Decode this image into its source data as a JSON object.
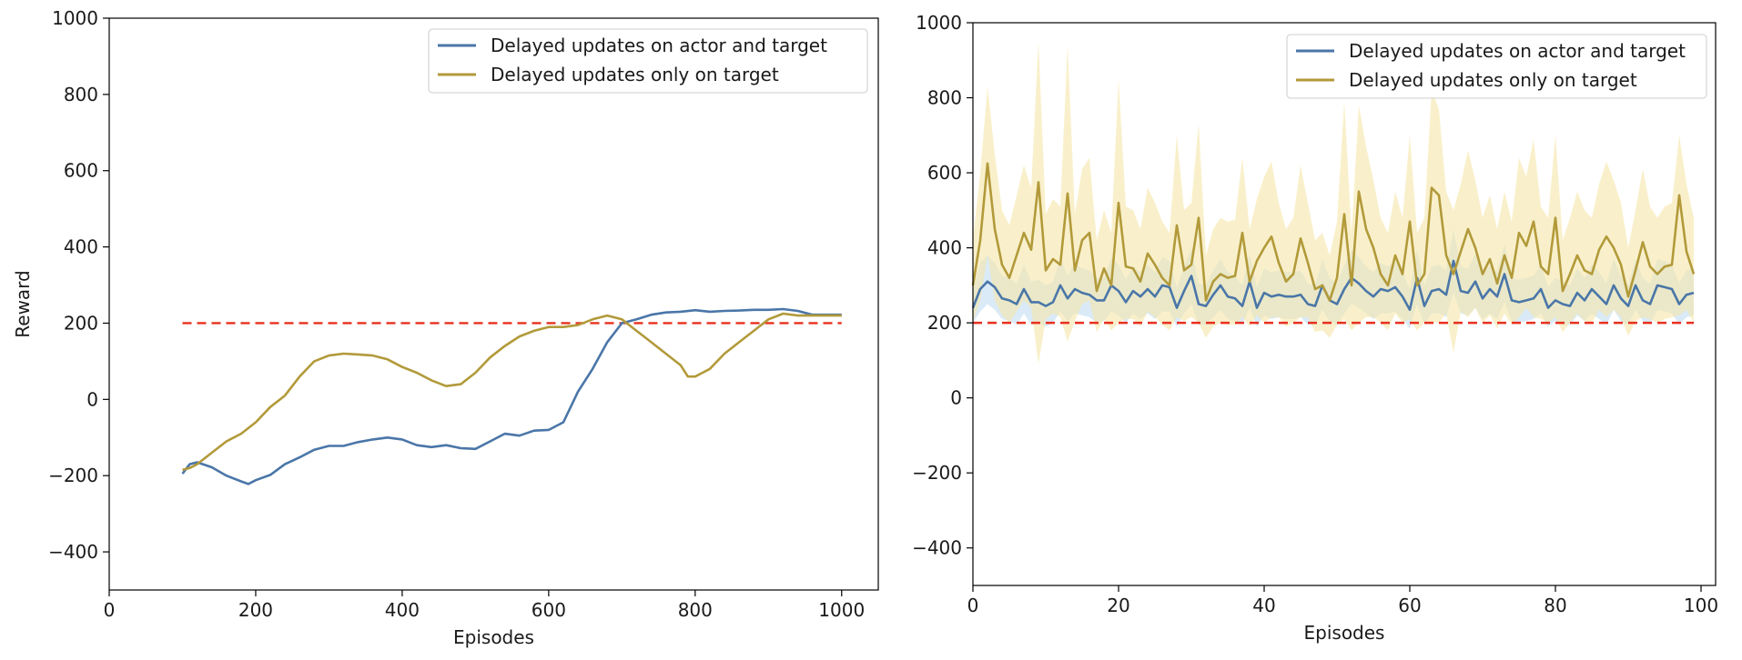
{
  "chart_data": [
    {
      "type": "line",
      "title": "",
      "xlabel": "Episodes",
      "ylabel": "Reward",
      "xlim": [
        0,
        1050
      ],
      "ylim": [
        -500,
        1000
      ],
      "xticks": [
        "0",
        "200",
        "400",
        "600",
        "800",
        "1000"
      ],
      "yticks": [
        "−400",
        "−200",
        "0",
        "200",
        "400",
        "600",
        "800",
        "1000"
      ],
      "legend_position": "top-right",
      "threshold": 200,
      "grid": false,
      "series": [
        {
          "name": "Delayed updates on actor and target",
          "color": "#4a76a8",
          "x": [
            100,
            110,
            120,
            140,
            160,
            180,
            190,
            200,
            220,
            240,
            260,
            280,
            300,
            320,
            340,
            360,
            380,
            400,
            420,
            440,
            460,
            480,
            500,
            520,
            540,
            560,
            580,
            600,
            620,
            640,
            660,
            680,
            700,
            720,
            740,
            760,
            780,
            800,
            820,
            840,
            860,
            880,
            900,
            920,
            940,
            960,
            980,
            1000
          ],
          "y": [
            -195,
            -170,
            -165,
            -178,
            -200,
            -215,
            -222,
            -212,
            -198,
            -170,
            -152,
            -132,
            -122,
            -122,
            -112,
            -105,
            -100,
            -105,
            -120,
            -125,
            -120,
            -128,
            -130,
            -110,
            -90,
            -95,
            -82,
            -80,
            -60,
            20,
            80,
            150,
            200,
            210,
            222,
            228,
            230,
            234,
            230,
            232,
            233,
            235,
            235,
            237,
            232,
            222,
            222,
            222
          ]
        },
        {
          "name": "Delayed updates only on target",
          "color": "#b29a3a",
          "x": [
            100,
            110,
            120,
            140,
            160,
            180,
            200,
            220,
            240,
            260,
            280,
            300,
            320,
            340,
            360,
            380,
            400,
            420,
            440,
            460,
            480,
            500,
            520,
            540,
            560,
            580,
            600,
            620,
            640,
            660,
            680,
            700,
            720,
            740,
            760,
            780,
            790,
            800,
            810,
            820,
            840,
            860,
            880,
            900,
            920,
            940,
            960,
            980,
            1000
          ],
          "y": [
            -185,
            -180,
            -170,
            -140,
            -110,
            -90,
            -60,
            -20,
            10,
            60,
            100,
            115,
            120,
            118,
            115,
            105,
            85,
            70,
            50,
            35,
            40,
            70,
            110,
            140,
            165,
            180,
            190,
            190,
            195,
            210,
            220,
            210,
            180,
            150,
            120,
            90,
            60,
            60,
            70,
            80,
            120,
            150,
            180,
            210,
            225,
            220,
            220,
            220,
            220
          ]
        }
      ]
    },
    {
      "type": "line",
      "title": "",
      "xlabel": "Episodes",
      "ylabel": "",
      "xlim": [
        0,
        102
      ],
      "ylim": [
        -500,
        1000
      ],
      "xticks": [
        "0",
        "20",
        "40",
        "60",
        "80",
        "100"
      ],
      "yticks": [
        "−400",
        "−200",
        "0",
        "200",
        "400",
        "600",
        "800",
        "1000"
      ],
      "legend_position": "top-right",
      "threshold": 200,
      "grid": false,
      "series": [
        {
          "name": "Delayed updates on actor and target",
          "color": "#4a76a8",
          "band_color": "#bcd8f0",
          "x": [
            0,
            1,
            2,
            3,
            4,
            5,
            6,
            7,
            8,
            9,
            10,
            11,
            12,
            13,
            14,
            15,
            16,
            17,
            18,
            19,
            20,
            21,
            22,
            23,
            24,
            25,
            26,
            27,
            28,
            29,
            30,
            31,
            32,
            33,
            34,
            35,
            36,
            37,
            38,
            39,
            40,
            41,
            42,
            43,
            44,
            45,
            46,
            47,
            48,
            49,
            50,
            51,
            52,
            53,
            54,
            55,
            56,
            57,
            58,
            59,
            60,
            61,
            62,
            63,
            64,
            65,
            66,
            67,
            68,
            69,
            70,
            71,
            72,
            73,
            74,
            75,
            76,
            77,
            78,
            79,
            80,
            81,
            82,
            83,
            84,
            85,
            86,
            87,
            88,
            89,
            90,
            91,
            92,
            93,
            94,
            95,
            96,
            97,
            98,
            99
          ],
          "y": [
            240,
            290,
            310,
            295,
            265,
            260,
            250,
            290,
            255,
            255,
            245,
            255,
            300,
            265,
            290,
            280,
            275,
            260,
            260,
            300,
            285,
            255,
            285,
            270,
            290,
            270,
            300,
            295,
            240,
            285,
            325,
            250,
            245,
            275,
            300,
            270,
            265,
            245,
            310,
            240,
            280,
            270,
            275,
            270,
            270,
            275,
            250,
            245,
            300,
            260,
            250,
            290,
            320,
            305,
            285,
            270,
            290,
            285,
            295,
            270,
            235,
            320,
            245,
            285,
            290,
            275,
            365,
            285,
            280,
            310,
            265,
            290,
            270,
            330,
            260,
            255,
            260,
            265,
            290,
            240,
            260,
            250,
            245,
            280,
            260,
            290,
            270,
            250,
            300,
            265,
            245,
            300,
            260,
            250,
            300,
            295,
            290,
            250,
            275,
            280
          ],
          "y_low": [
            200,
            230,
            250,
            235,
            210,
            205,
            195,
            225,
            195,
            200,
            190,
            200,
            230,
            205,
            225,
            220,
            215,
            200,
            205,
            230,
            220,
            200,
            225,
            210,
            225,
            210,
            230,
            230,
            190,
            225,
            250,
            195,
            195,
            215,
            235,
            210,
            205,
            195,
            240,
            190,
            220,
            210,
            215,
            210,
            210,
            215,
            195,
            195,
            235,
            205,
            195,
            225,
            250,
            240,
            225,
            210,
            225,
            225,
            230,
            210,
            185,
            250,
            195,
            225,
            225,
            215,
            280,
            225,
            220,
            240,
            210,
            225,
            210,
            255,
            205,
            200,
            205,
            210,
            225,
            190,
            205,
            195,
            195,
            220,
            205,
            225,
            210,
            195,
            235,
            205,
            195,
            235,
            205,
            195,
            235,
            230,
            225,
            195,
            215,
            220
          ],
          "y_high": [
            290,
            360,
            380,
            360,
            325,
            320,
            305,
            355,
            310,
            315,
            300,
            310,
            375,
            325,
            360,
            345,
            340,
            320,
            320,
            375,
            355,
            315,
            350,
            335,
            355,
            335,
            375,
            365,
            295,
            350,
            400,
            305,
            300,
            340,
            370,
            335,
            325,
            300,
            385,
            295,
            345,
            335,
            340,
            335,
            335,
            340,
            305,
            300,
            370,
            320,
            305,
            355,
            395,
            375,
            350,
            335,
            360,
            350,
            365,
            335,
            290,
            395,
            300,
            350,
            355,
            340,
            450,
            350,
            345,
            385,
            325,
            355,
            335,
            410,
            320,
            315,
            320,
            325,
            355,
            295,
            320,
            310,
            300,
            345,
            320,
            355,
            335,
            305,
            370,
            325,
            300,
            370,
            320,
            305,
            370,
            365,
            355,
            305,
            340,
            345
          ]
        },
        {
          "name": "Delayed updates only on target",
          "color": "#b29a3a",
          "band_color": "#f5e6a8",
          "x": [
            0,
            1,
            2,
            3,
            4,
            5,
            6,
            7,
            8,
            9,
            10,
            11,
            12,
            13,
            14,
            15,
            16,
            17,
            18,
            19,
            20,
            21,
            22,
            23,
            24,
            25,
            26,
            27,
            28,
            29,
            30,
            31,
            32,
            33,
            34,
            35,
            36,
            37,
            38,
            39,
            40,
            41,
            42,
            43,
            44,
            45,
            46,
            47,
            48,
            49,
            50,
            51,
            52,
            53,
            54,
            55,
            56,
            57,
            58,
            59,
            60,
            61,
            62,
            63,
            64,
            65,
            66,
            67,
            68,
            69,
            70,
            71,
            72,
            73,
            74,
            75,
            76,
            77,
            78,
            79,
            80,
            81,
            82,
            83,
            84,
            85,
            86,
            87,
            88,
            89,
            90,
            91,
            92,
            93,
            94,
            95,
            96,
            97,
            98,
            99
          ],
          "y": [
            300,
            420,
            625,
            450,
            355,
            320,
            380,
            440,
            395,
            575,
            340,
            370,
            355,
            545,
            340,
            420,
            440,
            285,
            345,
            300,
            520,
            350,
            345,
            310,
            385,
            355,
            320,
            300,
            460,
            340,
            355,
            480,
            260,
            310,
            330,
            320,
            325,
            440,
            310,
            365,
            400,
            430,
            360,
            310,
            330,
            425,
            360,
            290,
            300,
            260,
            320,
            490,
            300,
            550,
            450,
            400,
            330,
            300,
            380,
            330,
            470,
            300,
            330,
            560,
            540,
            380,
            330,
            390,
            450,
            400,
            330,
            370,
            305,
            380,
            320,
            440,
            405,
            470,
            350,
            330,
            480,
            285,
            330,
            380,
            340,
            330,
            395,
            430,
            400,
            355,
            270,
            340,
            415,
            350,
            330,
            350,
            355,
            540,
            390,
            330
          ],
          "y_low": [
            200,
            260,
            380,
            260,
            220,
            200,
            230,
            260,
            240,
            90,
            210,
            225,
            215,
            150,
            205,
            250,
            260,
            175,
            210,
            180,
            200,
            210,
            210,
            190,
            230,
            215,
            195,
            180,
            215,
            205,
            215,
            200,
            160,
            190,
            200,
            195,
            195,
            215,
            190,
            220,
            200,
            215,
            215,
            190,
            200,
            215,
            215,
            175,
            180,
            160,
            195,
            210,
            180,
            200,
            215,
            215,
            200,
            180,
            225,
            200,
            210,
            180,
            200,
            200,
            200,
            225,
            120,
            230,
            215,
            240,
            200,
            220,
            185,
            225,
            195,
            215,
            240,
            215,
            210,
            200,
            215,
            175,
            200,
            225,
            205,
            200,
            235,
            215,
            235,
            215,
            165,
            205,
            215,
            210,
            200,
            210,
            215,
            220,
            235,
            200
          ],
          "y_high": [
            420,
            600,
            830,
            650,
            500,
            460,
            540,
            620,
            560,
            950,
            490,
            530,
            510,
            940,
            490,
            610,
            640,
            420,
            500,
            440,
            850,
            510,
            500,
            450,
            560,
            520,
            470,
            440,
            700,
            500,
            520,
            730,
            380,
            450,
            480,
            470,
            475,
            640,
            450,
            530,
            590,
            630,
            520,
            450,
            480,
            620,
            520,
            420,
            440,
            380,
            470,
            790,
            440,
            780,
            670,
            580,
            480,
            440,
            550,
            480,
            700,
            440,
            480,
            820,
            770,
            550,
            500,
            570,
            660,
            580,
            480,
            540,
            450,
            550,
            470,
            640,
            590,
            690,
            510,
            480,
            700,
            420,
            480,
            550,
            500,
            480,
            570,
            630,
            580,
            520,
            400,
            500,
            610,
            510,
            480,
            510,
            520,
            700,
            570,
            480
          ]
        }
      ]
    }
  ]
}
